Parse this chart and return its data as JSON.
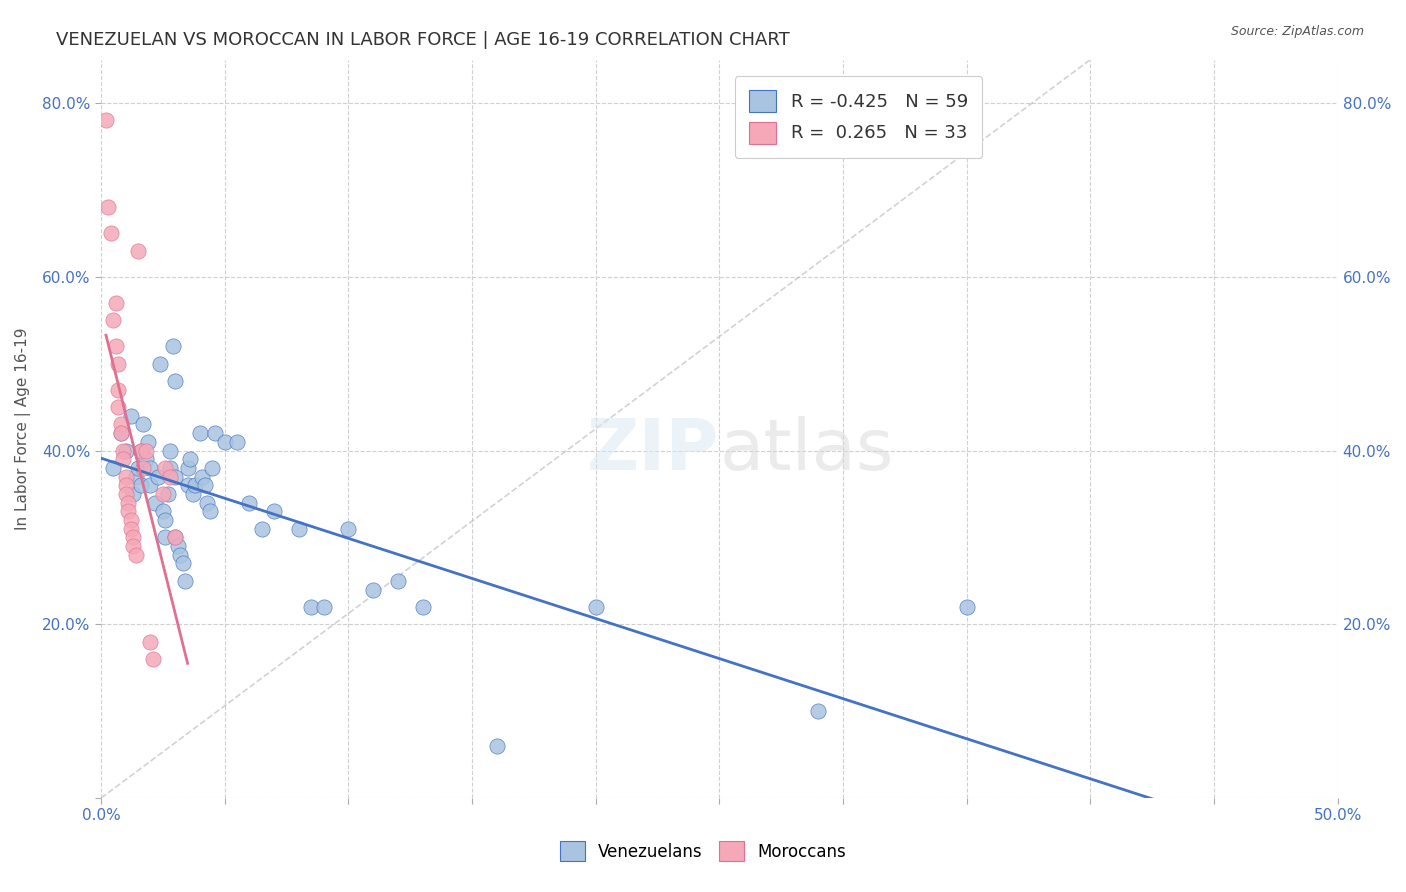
{
  "title": "VENEZUELAN VS MOROCCAN IN LABOR FORCE | AGE 16-19 CORRELATION CHART",
  "source": "Source: ZipAtlas.com",
  "xlabel": "",
  "ylabel": "In Labor Force | Age 16-19",
  "xlim": [
    0.0,
    0.5
  ],
  "ylim": [
    0.0,
    0.85
  ],
  "xticks": [
    0.0,
    0.05,
    0.1,
    0.15,
    0.2,
    0.25,
    0.3,
    0.35,
    0.4,
    0.45,
    0.5
  ],
  "xticklabels": [
    "0.0%",
    "",
    "",
    "",
    "",
    "",
    "",
    "",
    "",
    "",
    "50.0%"
  ],
  "yticks": [
    0.0,
    0.2,
    0.4,
    0.6,
    0.8
  ],
  "yticklabels": [
    "",
    "20.0%",
    "40.0%",
    "60.0%",
    "80.0%"
  ],
  "venezuelan_color": "#a8c4e0",
  "moroccan_color": "#f4a8b8",
  "venezuelan_line_color": "#4472c4",
  "moroccan_line_color": "#e07090",
  "diag_line_color": "#c0c0c0",
  "legend_venezuelan_label": "R = -0.425   N = 59",
  "legend_moroccan_label": "R =  0.265   N = 33",
  "watermark": "ZIPatlas",
  "venezuelan_R": -0.425,
  "venezuelan_N": 59,
  "moroccan_R": 0.265,
  "moroccan_N": 33,
  "venezuelan_points": [
    [
      0.005,
      0.38
    ],
    [
      0.008,
      0.42
    ],
    [
      0.01,
      0.4
    ],
    [
      0.012,
      0.44
    ],
    [
      0.013,
      0.35
    ],
    [
      0.014,
      0.37
    ],
    [
      0.015,
      0.38
    ],
    [
      0.016,
      0.36
    ],
    [
      0.016,
      0.4
    ],
    [
      0.017,
      0.43
    ],
    [
      0.018,
      0.39
    ],
    [
      0.019,
      0.41
    ],
    [
      0.02,
      0.38
    ],
    [
      0.02,
      0.36
    ],
    [
      0.022,
      0.34
    ],
    [
      0.023,
      0.37
    ],
    [
      0.024,
      0.5
    ],
    [
      0.025,
      0.33
    ],
    [
      0.026,
      0.32
    ],
    [
      0.026,
      0.3
    ],
    [
      0.027,
      0.35
    ],
    [
      0.028,
      0.38
    ],
    [
      0.028,
      0.4
    ],
    [
      0.029,
      0.52
    ],
    [
      0.03,
      0.48
    ],
    [
      0.03,
      0.37
    ],
    [
      0.03,
      0.3
    ],
    [
      0.031,
      0.29
    ],
    [
      0.032,
      0.28
    ],
    [
      0.033,
      0.27
    ],
    [
      0.034,
      0.25
    ],
    [
      0.035,
      0.36
    ],
    [
      0.035,
      0.38
    ],
    [
      0.036,
      0.39
    ],
    [
      0.037,
      0.35
    ],
    [
      0.038,
      0.36
    ],
    [
      0.04,
      0.42
    ],
    [
      0.041,
      0.37
    ],
    [
      0.042,
      0.36
    ],
    [
      0.043,
      0.34
    ],
    [
      0.044,
      0.33
    ],
    [
      0.045,
      0.38
    ],
    [
      0.046,
      0.42
    ],
    [
      0.05,
      0.41
    ],
    [
      0.055,
      0.41
    ],
    [
      0.06,
      0.34
    ],
    [
      0.065,
      0.31
    ],
    [
      0.07,
      0.33
    ],
    [
      0.08,
      0.31
    ],
    [
      0.085,
      0.22
    ],
    [
      0.09,
      0.22
    ],
    [
      0.1,
      0.31
    ],
    [
      0.11,
      0.24
    ],
    [
      0.12,
      0.25
    ],
    [
      0.13,
      0.22
    ],
    [
      0.16,
      0.06
    ],
    [
      0.2,
      0.22
    ],
    [
      0.29,
      0.1
    ],
    [
      0.35,
      0.22
    ]
  ],
  "moroccan_points": [
    [
      0.002,
      0.78
    ],
    [
      0.003,
      0.68
    ],
    [
      0.004,
      0.65
    ],
    [
      0.005,
      0.55
    ],
    [
      0.006,
      0.57
    ],
    [
      0.006,
      0.52
    ],
    [
      0.007,
      0.5
    ],
    [
      0.007,
      0.47
    ],
    [
      0.007,
      0.45
    ],
    [
      0.008,
      0.43
    ],
    [
      0.008,
      0.42
    ],
    [
      0.009,
      0.4
    ],
    [
      0.009,
      0.39
    ],
    [
      0.01,
      0.37
    ],
    [
      0.01,
      0.36
    ],
    [
      0.01,
      0.35
    ],
    [
      0.011,
      0.34
    ],
    [
      0.011,
      0.33
    ],
    [
      0.012,
      0.32
    ],
    [
      0.012,
      0.31
    ],
    [
      0.013,
      0.3
    ],
    [
      0.013,
      0.29
    ],
    [
      0.014,
      0.28
    ],
    [
      0.015,
      0.63
    ],
    [
      0.016,
      0.4
    ],
    [
      0.017,
      0.38
    ],
    [
      0.018,
      0.4
    ],
    [
      0.02,
      0.18
    ],
    [
      0.021,
      0.16
    ],
    [
      0.025,
      0.35
    ],
    [
      0.026,
      0.38
    ],
    [
      0.028,
      0.37
    ],
    [
      0.03,
      0.3
    ]
  ],
  "background_color": "#ffffff",
  "grid_color": "#d0d0d0",
  "title_fontsize": 13,
  "label_fontsize": 11,
  "tick_fontsize": 11
}
